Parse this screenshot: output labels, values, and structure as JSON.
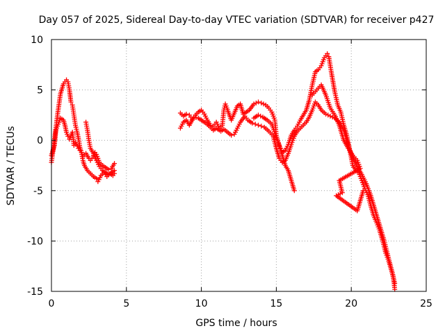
{
  "chart_data": {
    "type": "scatter",
    "title": "Day 057 of 2025, Sidereal Day-to-day VTEC variation (SDTVAR) for receiver p427",
    "xlabel": "GPS time / hours",
    "ylabel": "SDTVAR / TECUs",
    "xlim": [
      0,
      25
    ],
    "ylim": [
      -15,
      10
    ],
    "xticks": [
      0,
      5,
      10,
      15,
      20,
      25
    ],
    "yticks": [
      -15,
      -10,
      -5,
      0,
      5,
      10
    ],
    "grid": true,
    "marker": "+",
    "series": [
      {
        "name": "trace-a",
        "color": "#ff0000",
        "points": [
          [
            0,
            -2.2
          ],
          [
            0.2,
            0
          ],
          [
            0.4,
            2.5
          ],
          [
            0.6,
            4.6
          ],
          [
            0.8,
            5.6
          ],
          [
            1.0,
            6.0
          ],
          [
            1.1,
            5.8
          ],
          [
            1.2,
            5.0
          ],
          [
            1.3,
            3.8
          ],
          [
            1.4,
            3.5
          ],
          [
            1.5,
            2.5
          ],
          [
            1.6,
            1.5
          ],
          [
            1.7,
            0.9
          ],
          [
            1.8,
            0.2
          ],
          [
            1.9,
            -0.7
          ],
          [
            2.0,
            -1.2
          ],
          [
            2.1,
            -1.6
          ],
          [
            2.3,
            -1.3
          ],
          [
            2.5,
            -1.8
          ],
          [
            2.6,
            -2.0
          ],
          [
            2.7,
            -1.8
          ],
          [
            2.8,
            -1.5
          ],
          [
            2.9,
            -1.2
          ],
          [
            3.0,
            -1.4
          ],
          [
            3.1,
            -1.8
          ],
          [
            3.2,
            -2.2
          ],
          [
            3.4,
            -2.5
          ],
          [
            3.6,
            -2.7
          ],
          [
            3.8,
            -2.9
          ],
          [
            4.0,
            -2.8
          ],
          [
            4.2,
            -2.3
          ]
        ]
      },
      {
        "name": "trace-b",
        "color": "#ff0000",
        "points": [
          [
            0,
            -1.5
          ],
          [
            0.2,
            -0.5
          ],
          [
            0.3,
            1.0
          ],
          [
            0.5,
            1.8
          ],
          [
            0.6,
            2.2
          ],
          [
            0.8,
            2.0
          ],
          [
            0.9,
            1.5
          ],
          [
            1.0,
            0.8
          ],
          [
            1.1,
            0.4
          ],
          [
            1.2,
            0.1
          ],
          [
            1.4,
            0.8
          ],
          [
            1.5,
            -0.5
          ],
          [
            1.6,
            -0.2
          ],
          [
            1.8,
            -0.8
          ],
          [
            2.0,
            -1.2
          ],
          [
            2.1,
            -2.0
          ],
          [
            2.2,
            -2.5
          ],
          [
            2.4,
            -3.0
          ],
          [
            2.6,
            -3.3
          ],
          [
            2.8,
            -3.6
          ],
          [
            3.0,
            -3.8
          ],
          [
            3.1,
            -4.1
          ],
          [
            3.3,
            -3.5
          ],
          [
            3.5,
            -3.2
          ],
          [
            3.7,
            -3.6
          ],
          [
            3.9,
            -3.3
          ],
          [
            4.1,
            -3.5
          ],
          [
            4.2,
            -3.3
          ]
        ]
      },
      {
        "name": "trace-c",
        "color": "#ff0000",
        "points": [
          [
            2.3,
            1.8
          ],
          [
            2.4,
            1.0
          ],
          [
            2.5,
            0
          ],
          [
            2.6,
            -0.8
          ],
          [
            2.8,
            -1.3
          ],
          [
            3.0,
            -2.0
          ],
          [
            3.2,
            -2.6
          ],
          [
            3.4,
            -3.0
          ],
          [
            3.6,
            -3.2
          ],
          [
            3.8,
            -3.4
          ],
          [
            4.0,
            -3.2
          ],
          [
            4.2,
            -3.0
          ]
        ]
      },
      {
        "name": "trace-d",
        "color": "#ff0000",
        "points": [
          [
            8.6,
            2.7
          ],
          [
            8.8,
            2.4
          ],
          [
            9.0,
            2.6
          ],
          [
            9.2,
            2.5
          ],
          [
            9.4,
            2.1
          ],
          [
            9.6,
            2.5
          ],
          [
            9.8,
            2.8
          ],
          [
            10.0,
            3.0
          ],
          [
            10.2,
            2.6
          ],
          [
            10.4,
            2.0
          ],
          [
            10.6,
            1.5
          ],
          [
            10.8,
            1.4
          ],
          [
            11.0,
            1.8
          ],
          [
            11.2,
            1.2
          ],
          [
            11.4,
            1.5
          ],
          [
            11.5,
            3.0
          ],
          [
            11.6,
            3.6
          ],
          [
            11.7,
            3.2
          ],
          [
            12.0,
            2.0
          ],
          [
            12.4,
            3.4
          ],
          [
            12.6,
            3.6
          ],
          [
            12.8,
            2.6
          ],
          [
            13.0,
            2.8
          ],
          [
            13.2,
            3.0
          ],
          [
            13.5,
            3.6
          ],
          [
            13.8,
            3.8
          ],
          [
            14.0,
            3.7
          ],
          [
            14.3,
            3.5
          ],
          [
            14.5,
            3.2
          ],
          [
            14.7,
            2.8
          ],
          [
            14.9,
            2.0
          ],
          [
            15.0,
            0.5
          ],
          [
            15.2,
            -0.6
          ],
          [
            15.4,
            -1.2
          ],
          [
            15.6,
            -1.0
          ],
          [
            15.8,
            -0.4
          ],
          [
            16.0,
            0.5
          ],
          [
            16.2,
            1.0
          ],
          [
            16.4,
            1.4
          ],
          [
            16.6,
            2.0
          ],
          [
            16.8,
            2.5
          ],
          [
            17.0,
            3.0
          ],
          [
            17.2,
            4.0
          ],
          [
            17.4,
            5.5
          ],
          [
            17.6,
            6.8
          ],
          [
            17.8,
            7.0
          ],
          [
            18.0,
            7.4
          ],
          [
            18.2,
            8.2
          ],
          [
            18.4,
            8.6
          ],
          [
            18.5,
            8.3
          ],
          [
            18.7,
            6.5
          ],
          [
            18.9,
            4.8
          ],
          [
            19.1,
            3.5
          ],
          [
            19.3,
            2.8
          ],
          [
            19.5,
            1.5
          ],
          [
            19.7,
            0.5
          ],
          [
            19.9,
            -1.0
          ],
          [
            20.1,
            -2.5
          ],
          [
            20.3,
            -3.0
          ],
          [
            20.5,
            -3.2
          ],
          [
            20.7,
            -4.0
          ],
          [
            20.9,
            -4.8
          ],
          [
            21.1,
            -5.4
          ],
          [
            21.3,
            -6.5
          ],
          [
            21.5,
            -7.5
          ],
          [
            21.7,
            -8.2
          ],
          [
            21.9,
            -9.0
          ],
          [
            22.1,
            -10.0
          ],
          [
            22.3,
            -11.2
          ],
          [
            22.5,
            -12.0
          ],
          [
            22.7,
            -13.0
          ],
          [
            22.9,
            -14.2
          ]
        ]
      },
      {
        "name": "trace-e",
        "color": "#ff0000",
        "points": [
          [
            8.6,
            1.2
          ],
          [
            8.8,
            1.8
          ],
          [
            9.0,
            2.0
          ],
          [
            9.2,
            1.5
          ],
          [
            9.5,
            2.3
          ],
          [
            9.8,
            2.2
          ],
          [
            10.0,
            2.0
          ],
          [
            10.3,
            1.7
          ],
          [
            10.6,
            1.3
          ],
          [
            10.8,
            1.0
          ],
          [
            11.0,
            1.2
          ],
          [
            11.3,
            0.9
          ],
          [
            11.5,
            1.1
          ],
          [
            12.0,
            0.5
          ],
          [
            12.2,
            0.6
          ],
          [
            12.4,
            1.2
          ],
          [
            12.6,
            1.8
          ],
          [
            12.9,
            2.4
          ],
          [
            13.1,
            2.0
          ],
          [
            13.4,
            1.7
          ],
          [
            13.6,
            1.6
          ],
          [
            13.8,
            1.5
          ],
          [
            14.0,
            1.4
          ],
          [
            14.2,
            1.3
          ],
          [
            14.5,
            0.9
          ],
          [
            14.8,
            0.4
          ],
          [
            15.0,
            -0.8
          ],
          [
            15.2,
            -1.8
          ],
          [
            15.4,
            -2.2
          ],
          [
            15.6,
            -2.0
          ],
          [
            15.8,
            -1.3
          ],
          [
            16.0,
            -0.4
          ],
          [
            16.2,
            0.4
          ],
          [
            16.4,
            0.9
          ],
          [
            16.6,
            1.2
          ],
          [
            16.8,
            1.5
          ],
          [
            17.0,
            1.8
          ],
          [
            17.2,
            2.3
          ],
          [
            17.4,
            3.0
          ],
          [
            17.6,
            3.8
          ],
          [
            17.8,
            3.5
          ],
          [
            18.0,
            3.0
          ],
          [
            18.3,
            2.6
          ],
          [
            18.6,
            2.4
          ],
          [
            18.9,
            2.2
          ],
          [
            19.2,
            1.8
          ],
          [
            19.5,
            1.0
          ],
          [
            19.8,
            -0.5
          ],
          [
            20.1,
            -1.8
          ],
          [
            20.4,
            -2.6
          ],
          [
            20.7,
            -3.4
          ],
          [
            21.0,
            -4.3
          ],
          [
            21.3,
            -5.5
          ],
          [
            21.6,
            -7.0
          ],
          [
            21.9,
            -8.5
          ],
          [
            22.2,
            -10.0
          ],
          [
            22.5,
            -11.8
          ],
          [
            22.8,
            -13.5
          ],
          [
            22.9,
            -14.8
          ]
        ]
      },
      {
        "name": "trace-f",
        "color": "#ff0000",
        "points": [
          [
            13.5,
            2.2
          ],
          [
            13.8,
            2.5
          ],
          [
            14.1,
            2.3
          ],
          [
            14.4,
            2.0
          ],
          [
            14.7,
            1.6
          ],
          [
            15.0,
            0.3
          ],
          [
            15.2,
            -0.5
          ],
          [
            15.4,
            -1.5
          ],
          [
            15.6,
            -2.5
          ],
          [
            15.8,
            -3.0
          ],
          [
            16.0,
            -4.0
          ],
          [
            16.2,
            -5.0
          ],
          [
            17.4,
            4.5
          ],
          [
            17.7,
            5.0
          ],
          [
            18.0,
            5.5
          ],
          [
            18.3,
            4.5
          ],
          [
            18.6,
            3.2
          ],
          [
            18.9,
            2.5
          ],
          [
            19.2,
            1.5
          ],
          [
            19.5,
            0
          ],
          [
            19.8,
            -0.8
          ],
          [
            20.1,
            -1.5
          ],
          [
            20.4,
            -2.0
          ],
          [
            20.6,
            -2.8
          ],
          [
            19.2,
            -4.0
          ],
          [
            19.4,
            -5.2
          ],
          [
            19.0,
            -5.5
          ],
          [
            20.4,
            -7.0
          ],
          [
            20.8,
            -5.0
          ]
        ]
      }
    ]
  }
}
